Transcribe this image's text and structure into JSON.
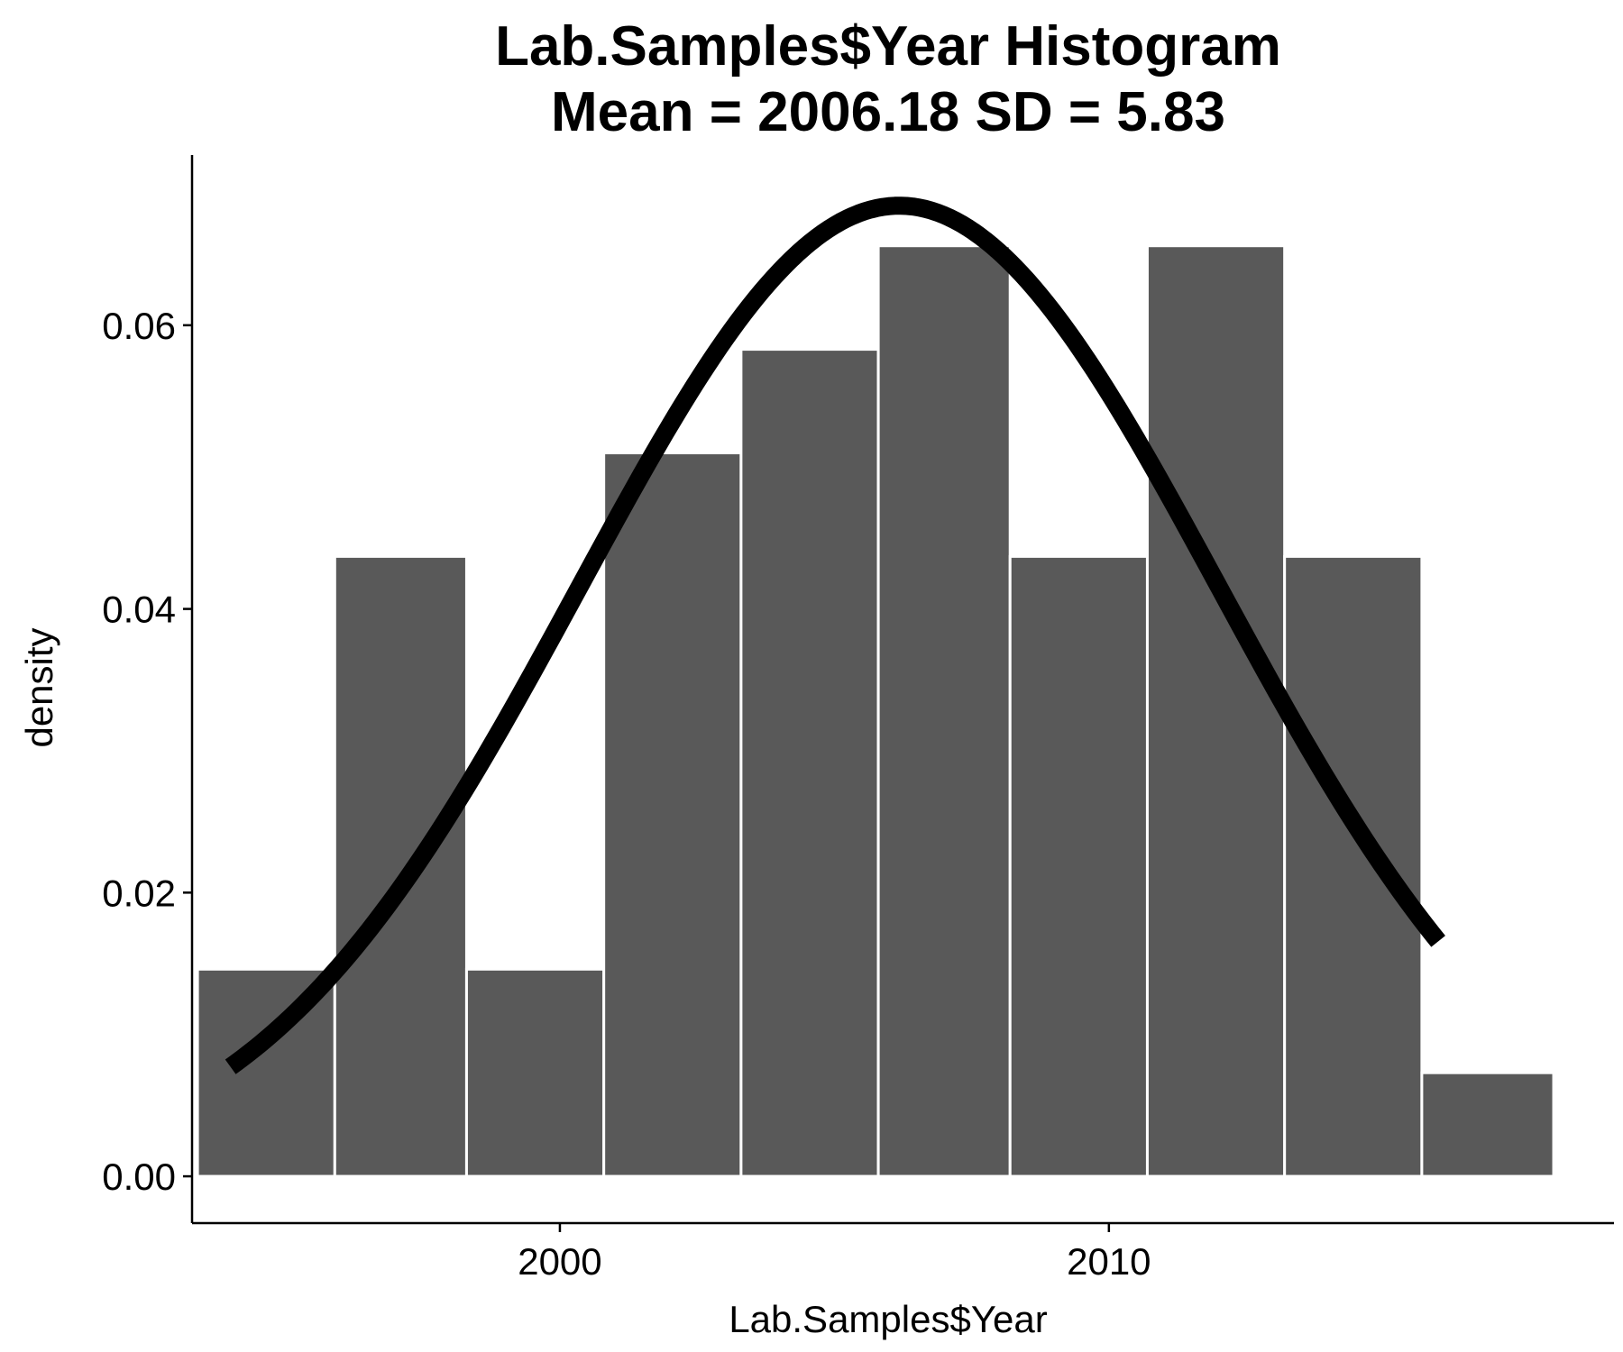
{
  "chart_data": {
    "type": "bar",
    "title": "Lab.Samples$Year Histogram",
    "subtitle": "Mean = 2006.18 SD = 5.83",
    "xlabel": "Lab.Samples$Year",
    "ylabel": "density",
    "xlim": [
      1993.3,
      2019.2
    ],
    "ylim": [
      -0.0033,
      0.072
    ],
    "x_ticks": [
      2000,
      2010
    ],
    "x_tick_labels": [
      "2000",
      "2010"
    ],
    "y_ticks": [
      0.0,
      0.02,
      0.04,
      0.06
    ],
    "y_tick_labels": [
      "0.00",
      "0.02",
      "0.04",
      "0.06"
    ],
    "bins": [
      {
        "x0": 1993.4,
        "x1": 1995.9,
        "density": 0.0146
      },
      {
        "x0": 1995.9,
        "x1": 1998.3,
        "density": 0.0437
      },
      {
        "x0": 1998.3,
        "x1": 2000.8,
        "density": 0.0146
      },
      {
        "x0": 2000.8,
        "x1": 2003.3,
        "density": 0.051
      },
      {
        "x0": 2003.3,
        "x1": 2005.8,
        "density": 0.0583
      },
      {
        "x0": 2005.8,
        "x1": 2008.2,
        "density": 0.0656
      },
      {
        "x0": 2008.2,
        "x1": 2010.7,
        "density": 0.0437
      },
      {
        "x0": 2010.7,
        "x1": 2013.2,
        "density": 0.0656
      },
      {
        "x0": 2013.2,
        "x1": 2015.7,
        "density": 0.0437
      },
      {
        "x0": 2015.7,
        "x1": 2018.1,
        "density": 0.0073
      }
    ],
    "normal_curve": {
      "mean": 2006.18,
      "sd": 5.83,
      "x_from": 1994.0,
      "x_to": 2016.0
    },
    "bar_color": "#595959",
    "bar_edge_color": "#ffffff",
    "curve_color": "#000000",
    "grid": false,
    "legend": "none"
  }
}
